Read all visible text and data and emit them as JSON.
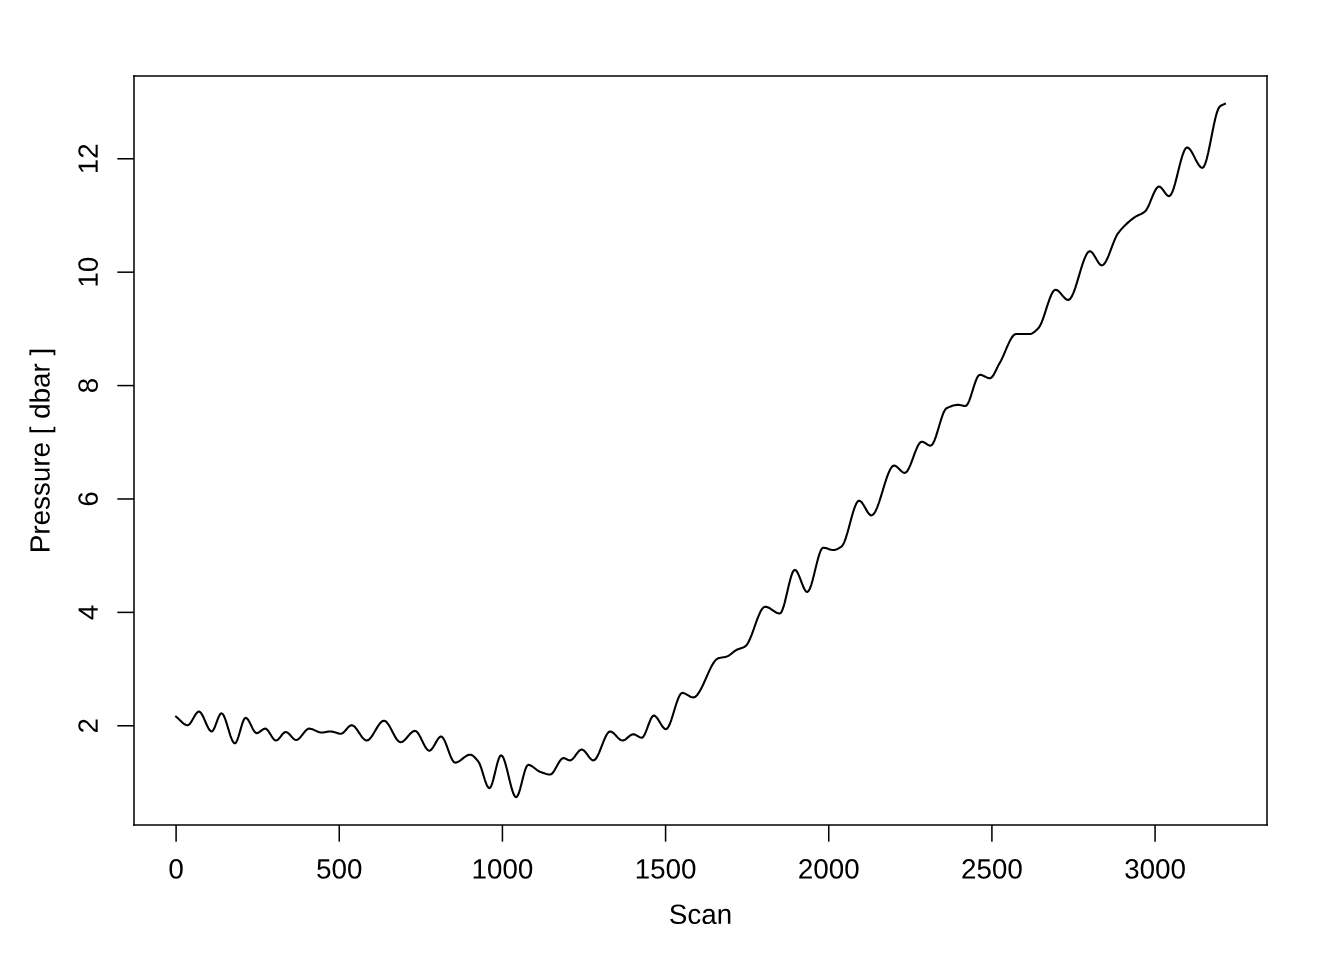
{
  "chart_data": {
    "type": "line",
    "xlabel": "Scan",
    "ylabel": "Pressure [ dbar ]",
    "xlim": [
      -129,
      3343
    ],
    "ylim": [
      0.25,
      13.46
    ],
    "xticks": [
      0,
      500,
      1000,
      1500,
      2000,
      2500,
      3000
    ],
    "yticks": [
      2,
      4,
      6,
      8,
      10,
      12
    ],
    "grid": false,
    "legend": false,
    "marker": "none",
    "line_style": "solid",
    "series": [
      {
        "color": "#000000",
        "x": [
          0,
          35,
          70,
          109,
          139,
          180,
          213,
          247,
          273,
          306,
          336,
          368,
          408,
          446,
          472,
          505,
          538,
          584,
          637,
          688,
          732,
          776,
          812,
          855,
          901,
          926,
          960,
          996,
          1042,
          1079,
          1115,
          1146,
          1187,
          1207,
          1243,
          1279,
          1330,
          1368,
          1401,
          1427,
          1464,
          1501,
          1551,
          1585,
          1661,
          1687,
          1718,
          1744,
          1805,
          1850,
          1896,
          1934,
          1983,
          2014,
          2039,
          2093,
          2131,
          2200,
          2233,
          2285,
          2312,
          2361,
          2397,
          2419,
          2463,
          2494,
          2524,
          2574,
          2616,
          2642,
          2695,
          2734,
          2800,
          2837,
          2887,
          2938,
          2969,
          3012,
          3043,
          3098,
          3145,
          3198,
          3214
        ],
        "values": [
          2.16,
          2.01,
          2.25,
          1.9,
          2.22,
          1.69,
          2.14,
          1.87,
          1.95,
          1.74,
          1.89,
          1.75,
          1.95,
          1.88,
          1.9,
          1.86,
          2.01,
          1.74,
          2.09,
          1.71,
          1.91,
          1.56,
          1.81,
          1.35,
          1.49,
          1.37,
          0.9,
          1.48,
          0.74,
          1.31,
          1.19,
          1.14,
          1.43,
          1.39,
          1.58,
          1.39,
          1.9,
          1.74,
          1.85,
          1.79,
          2.18,
          1.94,
          2.58,
          2.5,
          3.19,
          3.22,
          3.34,
          3.4,
          4.1,
          3.98,
          4.75,
          4.36,
          5.14,
          5.1,
          5.16,
          5.97,
          5.71,
          6.59,
          6.46,
          7.01,
          6.94,
          7.6,
          7.66,
          7.64,
          8.19,
          8.13,
          8.4,
          8.91,
          8.91,
          9.01,
          9.69,
          9.51,
          10.37,
          10.12,
          10.69,
          10.97,
          11.07,
          11.51,
          11.34,
          12.2,
          11.84,
          12.92,
          12.97
        ]
      }
    ]
  }
}
